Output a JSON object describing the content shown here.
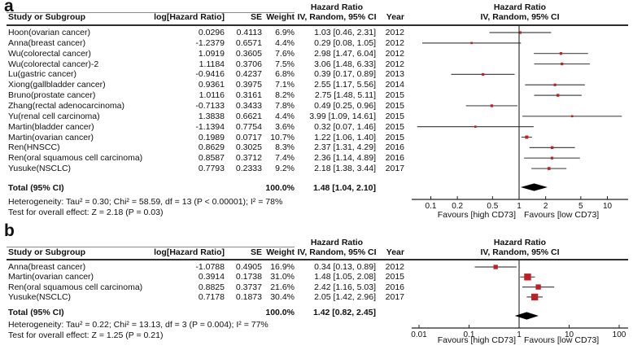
{
  "figure": {
    "background": "#ffffff",
    "colors": {
      "marker_red": "#bf2026",
      "ci_line": "#4a4a4a",
      "diamond": "#000000",
      "axis": "#222222",
      "text": "#111111",
      "rule": "#2d2d2d",
      "top_rule": "#8a8a8a"
    }
  },
  "chart_data": [
    {
      "type": "forest",
      "panel_label": "a",
      "effect_measure": "Hazard Ratio",
      "model": "IV, Random, 95% CI",
      "header": {
        "hazard_ratio_left": "Hazard Ratio",
        "hazard_ratio_right": "Hazard Ratio"
      },
      "columns": {
        "study": "Study or Subgroup",
        "loghr": "log[Hazard Ratio]",
        "se": "SE",
        "weight": "Weight",
        "ci": "IV, Random, 95% CI",
        "year": "Year",
        "plot_ci": "IV, Random, 95% CI"
      },
      "studies": [
        {
          "name": "Hoon(ovarian cancer)",
          "log_hr": "0.0296",
          "se": "0.4113",
          "weight": "6.9%",
          "hr_ci": "1.03 [0.46, 2.31]",
          "year": "2012",
          "est": 1.03,
          "lo": 0.46,
          "hi": 2.31,
          "weight_pct": 6.9
        },
        {
          "name": "Anna(breast cancer)",
          "log_hr": "-1.2379",
          "se": "0.6571",
          "weight": "4.4%",
          "hr_ci": "0.29 [0.08, 1.05]",
          "year": "2012",
          "est": 0.29,
          "lo": 0.08,
          "hi": 1.05,
          "weight_pct": 4.4
        },
        {
          "name": "Wu(colorectal cancer)",
          "log_hr": "1.0919",
          "se": "0.3605",
          "weight": "7.6%",
          "hr_ci": "2.98 [1.47, 6.04]",
          "year": "2012",
          "est": 2.98,
          "lo": 1.47,
          "hi": 6.04,
          "weight_pct": 7.6
        },
        {
          "name": "Wu(colorectal cancer)-2",
          "log_hr": "1.1184",
          "se": "0.3706",
          "weight": "7.5%",
          "hr_ci": "3.06 [1.48, 6.33]",
          "year": "2012",
          "est": 3.06,
          "lo": 1.48,
          "hi": 6.33,
          "weight_pct": 7.5
        },
        {
          "name": "Lu(gastric cancer)",
          "log_hr": "-0.9416",
          "se": "0.4237",
          "weight": "6.8%",
          "hr_ci": "0.39 [0.17, 0.89]",
          "year": "2013",
          "est": 0.39,
          "lo": 0.17,
          "hi": 0.89,
          "weight_pct": 6.8
        },
        {
          "name": "Xiong(gallbladder cancer)",
          "log_hr": "0.9361",
          "se": "0.3975",
          "weight": "7.1%",
          "hr_ci": "2.55 [1.17, 5.56]",
          "year": "2014",
          "est": 2.55,
          "lo": 1.17,
          "hi": 5.56,
          "weight_pct": 7.1
        },
        {
          "name": "Bruno(prostate cancer)",
          "log_hr": "1.0116",
          "se": "0.3161",
          "weight": "8.2%",
          "hr_ci": "2.75 [1.48, 5.11]",
          "year": "2015",
          "est": 2.75,
          "lo": 1.48,
          "hi": 5.11,
          "weight_pct": 8.2
        },
        {
          "name": "Zhang(rectal adenocarcinoma)",
          "log_hr": "-0.7133",
          "se": "0.3433",
          "weight": "7.8%",
          "hr_ci": "0.49 [0.25, 0.96]",
          "year": "2015",
          "est": 0.49,
          "lo": 0.25,
          "hi": 0.96,
          "weight_pct": 7.8
        },
        {
          "name": "Yu(renal cell carcinoma)",
          "log_hr": "1.3838",
          "se": "0.6621",
          "weight": "4.4%",
          "hr_ci": "3.99 [1.09, 14.61]",
          "year": "2015",
          "est": 3.99,
          "lo": 1.09,
          "hi": 14.61,
          "weight_pct": 4.4
        },
        {
          "name": "Martin(bladder cancer)",
          "log_hr": "-1.1394",
          "se": "0.7754",
          "weight": "3.6%",
          "hr_ci": "0.32 [0.07, 1.46]",
          "year": "2015",
          "est": 0.32,
          "lo": 0.07,
          "hi": 1.46,
          "weight_pct": 3.6
        },
        {
          "name": "Martin(ovarian cancer)",
          "log_hr": "0.1989",
          "se": "0.0717",
          "weight": "10.7%",
          "hr_ci": "1.22 [1.06, 1.40]",
          "year": "2015",
          "est": 1.22,
          "lo": 1.06,
          "hi": 1.4,
          "weight_pct": 10.7
        },
        {
          "name": "Ren(HNSCC)",
          "log_hr": "0.8629",
          "se": "0.3025",
          "weight": "8.3%",
          "hr_ci": "2.37 [1.31, 4.29]",
          "year": "2016",
          "est": 2.37,
          "lo": 1.31,
          "hi": 4.29,
          "weight_pct": 8.3
        },
        {
          "name": "Ren(oral squamous cell carcinoma)",
          "log_hr": "0.8587",
          "se": "0.3712",
          "weight": "7.4%",
          "hr_ci": "2.36 [1.14, 4.89]",
          "year": "2016",
          "est": 2.36,
          "lo": 1.14,
          "hi": 4.89,
          "weight_pct": 7.4
        },
        {
          "name": "Yusuke(NSCLC)",
          "log_hr": "0.7793",
          "se": "0.2333",
          "weight": "9.2%",
          "hr_ci": "2.18 [1.38, 3.44]",
          "year": "2017",
          "est": 2.18,
          "lo": 1.38,
          "hi": 3.44,
          "weight_pct": 9.2
        }
      ],
      "total": {
        "label": "Total (95% CI)",
        "weight": "100.0%",
        "hr_ci": "1.48 [1.04, 2.10]",
        "est": 1.48,
        "lo": 1.04,
        "hi": 2.1
      },
      "heterogeneity": "Heterogeneity: Tau² = 0.30; Chi² = 58.59, df = 13 (P < 0.00001); I² = 78%",
      "overall_test": "Test for overall effect: Z = 2.18 (P = 0.03)",
      "axis": {
        "scale": "log",
        "xlim": [
          0.06,
          17
        ],
        "null_line": 1,
        "tick_values": [
          0.1,
          0.2,
          0.5,
          1,
          2,
          5,
          10
        ],
        "tick_labels": [
          "0.1",
          "0.2",
          "0.5",
          "1",
          "2",
          "5",
          "10"
        ]
      },
      "favours_left": "Favours [high CD73]",
      "favours_right": "Favours [low CD73]"
    },
    {
      "type": "forest",
      "panel_label": "b",
      "effect_measure": "Hazard Ratio",
      "model": "IV, Random, 95% CI",
      "header": {
        "hazard_ratio_left": "Hazard Ratio",
        "hazard_ratio_right": "Hazard Ratio"
      },
      "columns": {
        "study": "Study or Subgroup",
        "loghr": "log[Hazard Ratio]",
        "se": "SE",
        "weight": "Weight",
        "ci": "IV, Random, 95% CI",
        "year": "Year",
        "plot_ci": "IV, Random, 95% CI"
      },
      "studies": [
        {
          "name": "Anna(breast cancer)",
          "log_hr": "-1.0788",
          "se": "0.4905",
          "weight": "16.9%",
          "hr_ci": "0.34 [0.13, 0.89]",
          "year": "2012",
          "est": 0.34,
          "lo": 0.13,
          "hi": 0.89,
          "weight_pct": 16.9
        },
        {
          "name": "Martin(ovarian cancer)",
          "log_hr": "0.3914",
          "se": "0.1738",
          "weight": "31.0%",
          "hr_ci": "1.48 [1.05, 2.08]",
          "year": "2015",
          "est": 1.48,
          "lo": 1.05,
          "hi": 2.08,
          "weight_pct": 31.0
        },
        {
          "name": "Ren(oral squamous cell carcinoma)",
          "log_hr": "0.8825",
          "se": "0.3737",
          "weight": "21.6%",
          "hr_ci": "2.42 [1.16, 5.03]",
          "year": "2016",
          "est": 2.42,
          "lo": 1.16,
          "hi": 5.03,
          "weight_pct": 21.6
        },
        {
          "name": "Yusuke(NSCLC)",
          "log_hr": "0.7178",
          "se": "0.1873",
          "weight": "30.4%",
          "hr_ci": "2.05 [1.42, 2.96]",
          "year": "2017",
          "est": 2.05,
          "lo": 1.42,
          "hi": 2.96,
          "weight_pct": 30.4
        }
      ],
      "total": {
        "label": "Total (95% CI)",
        "weight": "100.0%",
        "hr_ci": "1.42 [0.82, 2.45]",
        "est": 1.42,
        "lo": 0.82,
        "hi": 2.45
      },
      "heterogeneity": "Heterogeneity: Tau² = 0.22; Chi² = 13.13, df = 3 (P = 0.004); I² = 77%",
      "overall_test": "Test for overall effect: Z = 1.25 (P = 0.21)",
      "axis": {
        "scale": "log",
        "xlim": [
          0.007,
          150
        ],
        "null_line": 1,
        "tick_values": [
          0.01,
          0.1,
          1,
          10,
          100
        ],
        "tick_labels": [
          "0.01",
          "0.1",
          "1",
          "10",
          "100"
        ]
      },
      "favours_left": "Favours [high CD73]",
      "favours_right": "Favours [low CD73]"
    }
  ]
}
